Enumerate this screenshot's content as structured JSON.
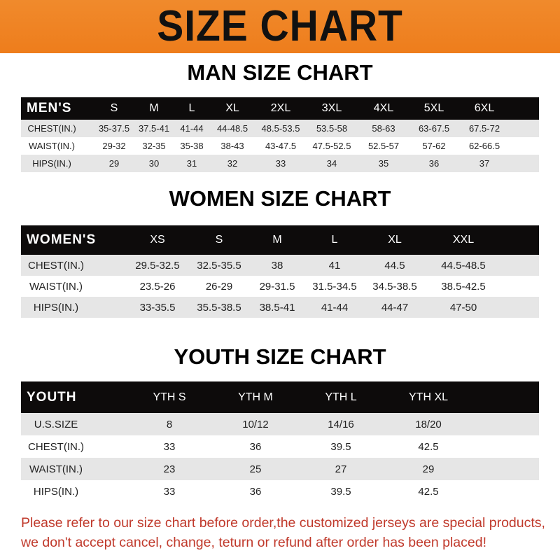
{
  "banner_title": "SIZE CHART",
  "men": {
    "title": "MAN SIZE CHART",
    "header_label": "MEN'S",
    "sizes": [
      "S",
      "M",
      "L",
      "XL",
      "2XL",
      "3XL",
      "4XL",
      "5XL",
      "6XL"
    ],
    "rows": [
      {
        "label": "CHEST(IN.)",
        "values": [
          "35-37.5",
          "37.5-41",
          "41-44",
          "44-48.5",
          "48.5-53.5",
          "53.5-58",
          "58-63",
          "63-67.5",
          "67.5-72"
        ]
      },
      {
        "label": "WAIST(IN.)",
        "values": [
          "29-32",
          "32-35",
          "35-38",
          "38-43",
          "43-47.5",
          "47.5-52.5",
          "52.5-57",
          "57-62",
          "62-66.5"
        ]
      },
      {
        "label": "HIPS(IN.)",
        "values": [
          "29",
          "30",
          "31",
          "32",
          "33",
          "34",
          "35",
          "36",
          "37"
        ]
      }
    ]
  },
  "women": {
    "title": "WOMEN SIZE CHART",
    "header_label": "WOMEN'S",
    "sizes": [
      "XS",
      "S",
      "M",
      "L",
      "XL",
      "XXL"
    ],
    "rows": [
      {
        "label": "CHEST(IN.)",
        "values": [
          "29.5-32.5",
          "32.5-35.5",
          "38",
          "41",
          "44.5",
          "44.5-48.5"
        ]
      },
      {
        "label": "WAIST(IN.)",
        "values": [
          "23.5-26",
          "26-29",
          "29-31.5",
          "31.5-34.5",
          "34.5-38.5",
          "38.5-42.5"
        ]
      },
      {
        "label": "HIPS(IN.)",
        "values": [
          "33-35.5",
          "35.5-38.5",
          "38.5-41",
          "41-44",
          "44-47",
          "47-50"
        ]
      }
    ]
  },
  "youth": {
    "title": "YOUTH SIZE CHART",
    "header_label": "YOUTH",
    "sizes": [
      "YTH S",
      "YTH M",
      "YTH L",
      "YTH XL"
    ],
    "rows": [
      {
        "label": "U.S.SIZE",
        "values": [
          "8",
          "10/12",
          "14/16",
          "18/20"
        ]
      },
      {
        "label": "CHEST(IN.)",
        "values": [
          "33",
          "36",
          "39.5",
          "42.5"
        ]
      },
      {
        "label": "WAIST(IN.)",
        "values": [
          "23",
          "25",
          "27",
          "29"
        ]
      },
      {
        "label": "HIPS(IN.)",
        "values": [
          "33",
          "36",
          "39.5",
          "42.5"
        ]
      }
    ]
  },
  "footer": {
    "line1": "Please refer to our size chart before order,the customized jerseys are special products,",
    "line2": "we don't accept cancel, change, teturn or refund after order has been placed!"
  },
  "colors": {
    "banner": "#ee7d1c",
    "header_row": "#0d0b0b",
    "stripe": "#e6e6e6",
    "notice": "#c0392b"
  }
}
